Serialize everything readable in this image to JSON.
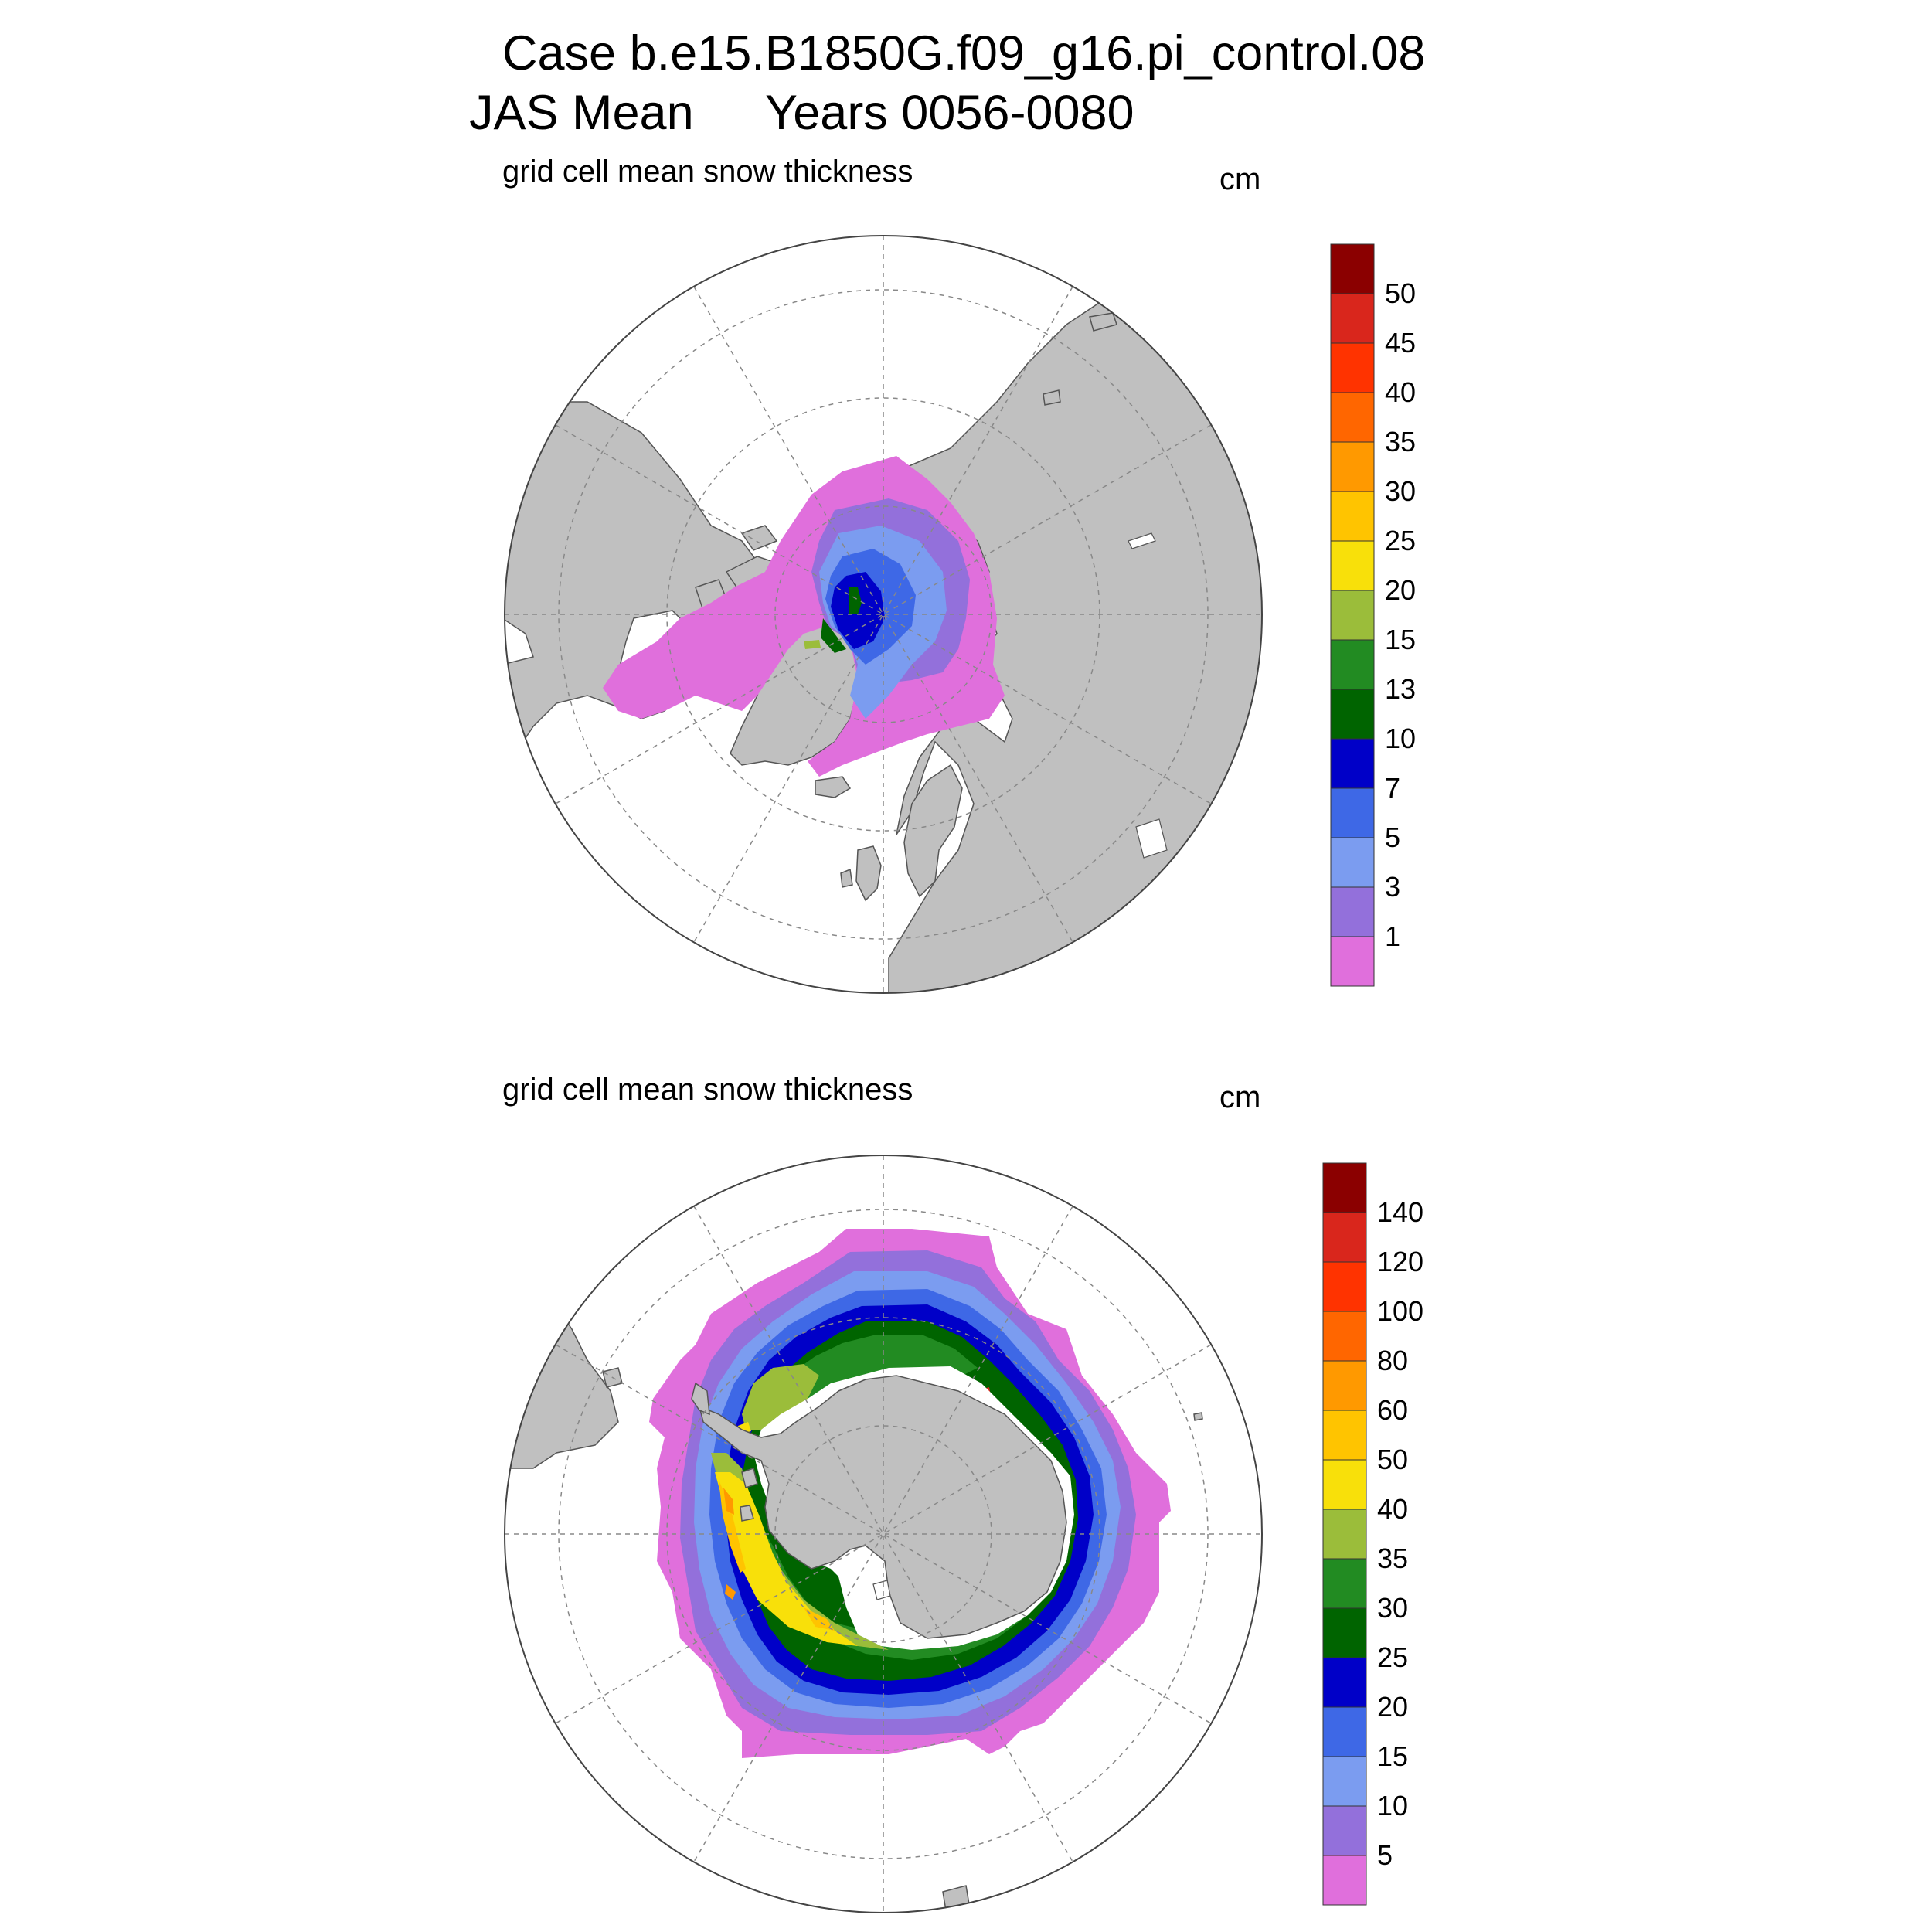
{
  "header": {
    "case_line": "Case b.e15.B1850G.f09_g16.pi_control.08",
    "season": "JAS Mean",
    "years": "Years 0056-0080"
  },
  "panels": [
    {
      "hemisphere": "north",
      "variable_label": "grid cell mean snow thickness",
      "units": "cm",
      "colorbar": {
        "levels": [
          "1",
          "3",
          "5",
          "7",
          "10",
          "13",
          "15",
          "20",
          "25",
          "30",
          "35",
          "40",
          "45",
          "50"
        ],
        "colors": [
          "#e06fdc",
          "#9370db",
          "#7b9cf0",
          "#3e68e6",
          "#0000c8",
          "#006400",
          "#228b22",
          "#9bbd3a",
          "#f8e00a",
          "#ffc400",
          "#ff9900",
          "#ff6600",
          "#ff3300",
          "#d9261c",
          "#8b0000"
        ]
      }
    },
    {
      "hemisphere": "south",
      "variable_label": "grid cell mean snow thickness",
      "units": "cm",
      "colorbar": {
        "levels": [
          "5",
          "10",
          "15",
          "20",
          "25",
          "30",
          "35",
          "40",
          "50",
          "60",
          "80",
          "100",
          "120",
          "140"
        ],
        "colors": [
          "#e06fdc",
          "#9370db",
          "#7b9cf0",
          "#3e68e6",
          "#0000c8",
          "#006400",
          "#228b22",
          "#9bbd3a",
          "#f8e00a",
          "#ffc400",
          "#ff9900",
          "#ff6600",
          "#ff3300",
          "#d9261c",
          "#8b0000"
        ]
      }
    }
  ],
  "colors": {
    "land": "#c0c0c0",
    "ocean": "#ffffff",
    "grid": "#888888"
  }
}
